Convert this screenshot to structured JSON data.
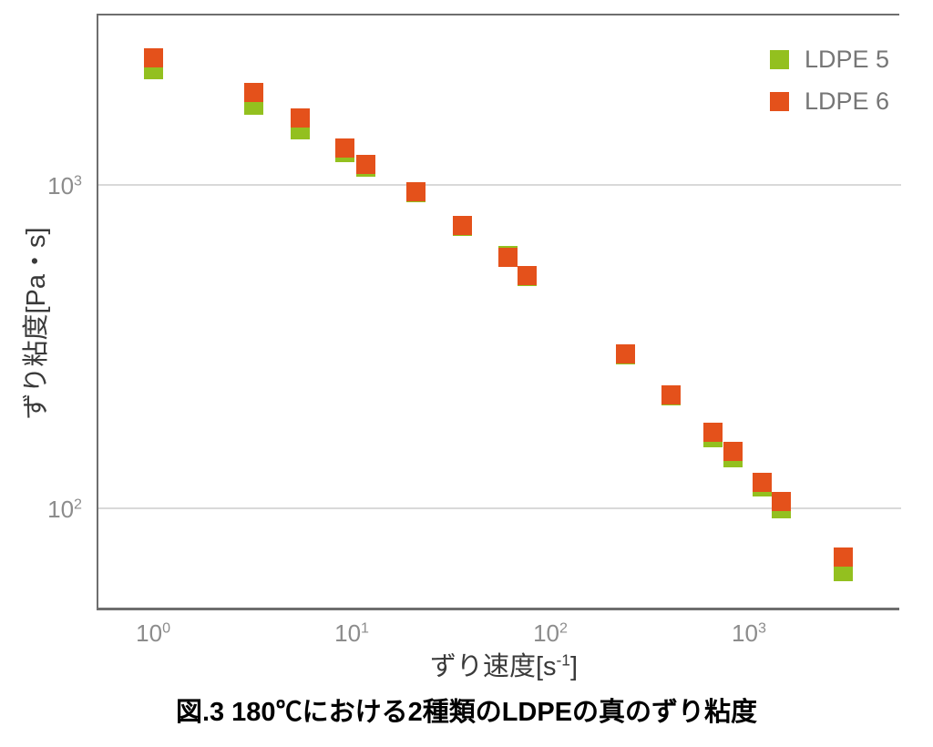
{
  "figure": {
    "caption": "図.3 180℃における2種類のLDPEの真のずり粘度"
  },
  "chart_data": {
    "type": "scatter",
    "title": "",
    "xlabel": {
      "text": "ずり速度[s",
      "sup": "-1",
      "end": "]"
    },
    "xlabel_full": "ずり速度[s⁻¹]",
    "ylabel": "ずり粘度[Pa・s]",
    "x_scale": "log",
    "y_scale": "log",
    "x_log_range": [
      -0.285,
      3.757
    ],
    "y_log_range": [
      1.686,
      3.53
    ],
    "grid": "horizontal",
    "grid_color": "#d9d9d9",
    "axis_color": "#6e6e6e",
    "tick_label_color": "#8c8c8c",
    "legend_position": "top-right",
    "x_ticks": [
      {
        "base": "10",
        "exp": "0",
        "value": 1
      },
      {
        "base": "10",
        "exp": "1",
        "value": 10
      },
      {
        "base": "10",
        "exp": "2",
        "value": 100
      },
      {
        "base": "10",
        "exp": "3",
        "value": 1000
      }
    ],
    "y_ticks": [
      {
        "base": "10",
        "exp": "2",
        "value": 100
      },
      {
        "base": "10",
        "exp": "3",
        "value": 1000
      }
    ],
    "series": [
      {
        "name": "LDPE 5",
        "color": "#93c01f",
        "marker": "square",
        "x": [
          1.0,
          3.2,
          5.5,
          9.2,
          11.8,
          21,
          36,
          61,
          76,
          240,
          405,
          660,
          835,
          1170,
          1460,
          3000
        ],
        "y": [
          2270,
          1770,
          1480,
          1260,
          1140,
          950,
          748,
          605,
          523,
          299,
          224,
          166,
          144,
          117,
          100,
          64
        ]
      },
      {
        "name": "LDPE 6",
        "color": "#e4511b",
        "marker": "square",
        "x": [
          1.0,
          3.2,
          5.5,
          9.2,
          11.8,
          21,
          36,
          61,
          76,
          240,
          405,
          660,
          835,
          1170,
          1460,
          3000
        ],
        "y": [
          2480,
          1940,
          1610,
          1300,
          1160,
          955,
          750,
          600,
          525,
          300,
          225,
          172,
          150,
          121,
          105,
          71
        ]
      }
    ]
  }
}
